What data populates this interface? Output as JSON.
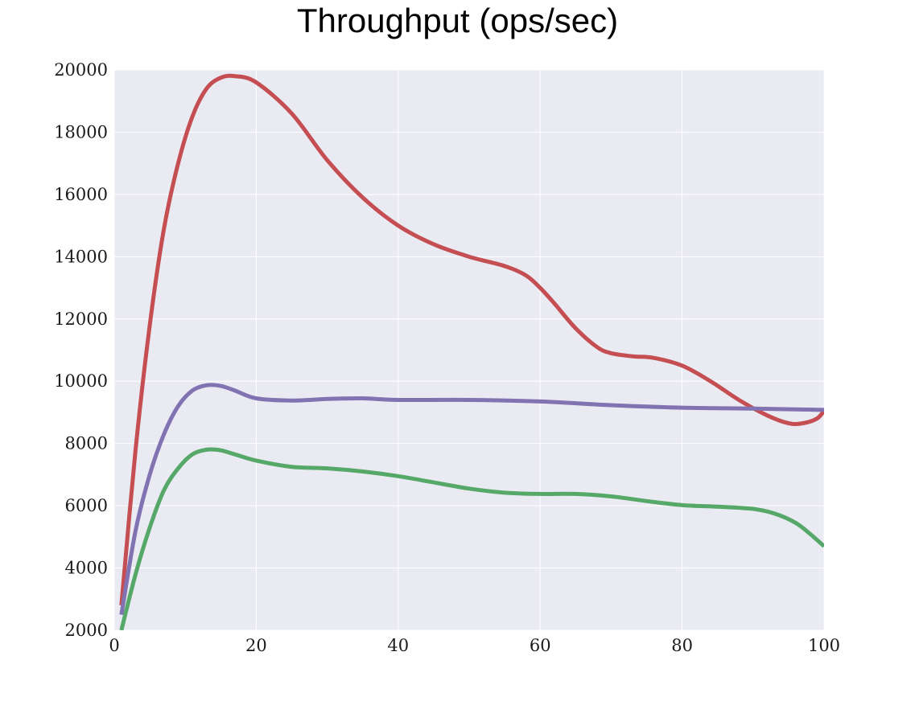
{
  "chart_data": {
    "type": "line",
    "title": "Throughput (ops/sec)",
    "xlabel": "",
    "ylabel": "",
    "xlim": [
      0,
      100
    ],
    "ylim": [
      2000,
      20000
    ],
    "xticks": [
      0,
      20,
      40,
      60,
      80,
      100
    ],
    "yticks": [
      2000,
      4000,
      6000,
      8000,
      10000,
      12000,
      14000,
      16000,
      18000,
      20000
    ],
    "grid": true,
    "legend": "none",
    "colors": {
      "plot_background": "#eaeaf2",
      "grid": "#ffffff"
    },
    "series": [
      {
        "color": "#c44e52",
        "x": [
          1,
          3,
          5,
          7,
          9,
          11,
          13,
          15,
          17,
          20,
          25,
          30,
          35,
          40,
          45,
          50,
          55,
          58,
          60,
          62,
          65,
          68,
          70,
          73,
          76,
          80,
          84,
          88,
          92,
          95,
          97,
          99,
          100
        ],
        "y": [
          2800,
          7800,
          11800,
          14900,
          17000,
          18500,
          19400,
          19750,
          19800,
          19600,
          18600,
          17100,
          15900,
          15000,
          14400,
          14000,
          13700,
          13400,
          13000,
          12500,
          11700,
          11100,
          10900,
          10800,
          10750,
          10500,
          10000,
          9400,
          8900,
          8650,
          8650,
          8800,
          9050
        ]
      },
      {
        "color": "#8172b2",
        "x": [
          1,
          3,
          5,
          7,
          9,
          11,
          13,
          15,
          17,
          20,
          25,
          30,
          35,
          40,
          50,
          60,
          70,
          80,
          90,
          100
        ],
        "y": [
          2500,
          5200,
          7000,
          8300,
          9200,
          9700,
          9870,
          9850,
          9700,
          9450,
          9380,
          9430,
          9450,
          9400,
          9400,
          9350,
          9230,
          9150,
          9120,
          9080
        ]
      },
      {
        "color": "#55a868",
        "x": [
          1,
          3,
          5,
          7,
          9,
          11,
          13,
          15,
          17,
          20,
          25,
          30,
          35,
          40,
          45,
          50,
          55,
          60,
          65,
          70,
          75,
          80,
          85,
          90,
          93,
          96,
          98,
          100
        ],
        "y": [
          2000,
          3800,
          5300,
          6500,
          7200,
          7650,
          7800,
          7780,
          7650,
          7450,
          7250,
          7200,
          7100,
          6950,
          6750,
          6550,
          6420,
          6380,
          6380,
          6300,
          6150,
          6020,
          5970,
          5900,
          5750,
          5450,
          5100,
          4700
        ]
      }
    ]
  }
}
